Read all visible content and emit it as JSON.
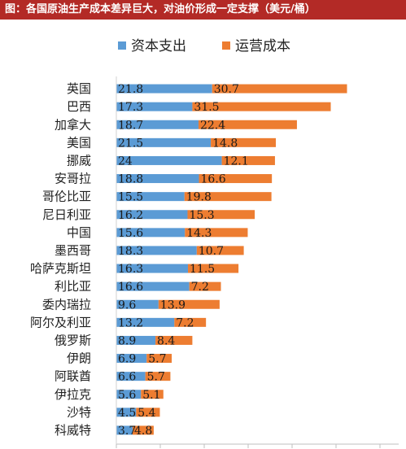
{
  "title": "图：各国原油生产成本差异巨大，对油价形成一定支撑（美元/桶）",
  "colors": {
    "title_bg": "#b32a26",
    "capex": "#5b9bd5",
    "opex": "#ed7d31"
  },
  "chart_data": {
    "type": "bar",
    "orientation": "horizontal",
    "stacked": true,
    "categories": [
      "英国",
      "巴西",
      "加拿大",
      "美国",
      "挪威",
      "安哥拉",
      "哥伦比亚",
      "尼日利亚",
      "中国",
      "墨西哥",
      "哈萨克斯坦",
      "利比亚",
      "委内瑞拉",
      "阿尔及利亚",
      "俄罗斯",
      "伊朗",
      "阿联酋",
      "伊拉克",
      "沙特",
      "科威特"
    ],
    "series": [
      {
        "name": "资本支出",
        "color": "#5b9bd5",
        "values": [
          21.8,
          17.3,
          18.7,
          21.5,
          24,
          18.8,
          15.5,
          16.2,
          15.6,
          18.3,
          16.3,
          16.6,
          9.6,
          13.2,
          8.9,
          6.9,
          6.6,
          5.6,
          4.5,
          3.7
        ]
      },
      {
        "name": "运营成本",
        "color": "#ed7d31",
        "values": [
          30.7,
          31.5,
          22.4,
          14.8,
          12.1,
          16.6,
          19.8,
          15.3,
          14.3,
          10.7,
          11.5,
          7.2,
          13.9,
          7.2,
          8.4,
          5.7,
          5.7,
          5.1,
          5.4,
          4.8
        ]
      }
    ],
    "value_labels": {
      "capex": [
        "21.8",
        "17.3",
        "18.7",
        "21.5",
        "24",
        "18.8",
        "15.5",
        "16.2",
        "15.6",
        "18.3",
        "16.3",
        "16.6",
        "9.6",
        "13.2",
        "8.9",
        "6.9",
        "6.6",
        "5.6",
        "4.5",
        "3.7"
      ],
      "opex": [
        "30.7",
        "31.5",
        "22.4",
        "14.8",
        "12.1",
        "16.6",
        "19.8",
        "15.3",
        "14.3",
        "10.7",
        "11.5",
        "7.2",
        "13.9",
        "7.2",
        "8.4",
        "5.7",
        "5.7",
        "5.1",
        "5.4",
        "4.8"
      ]
    },
    "xlim": [
      0,
      60
    ],
    "legend": "top-center",
    "grid": false
  }
}
